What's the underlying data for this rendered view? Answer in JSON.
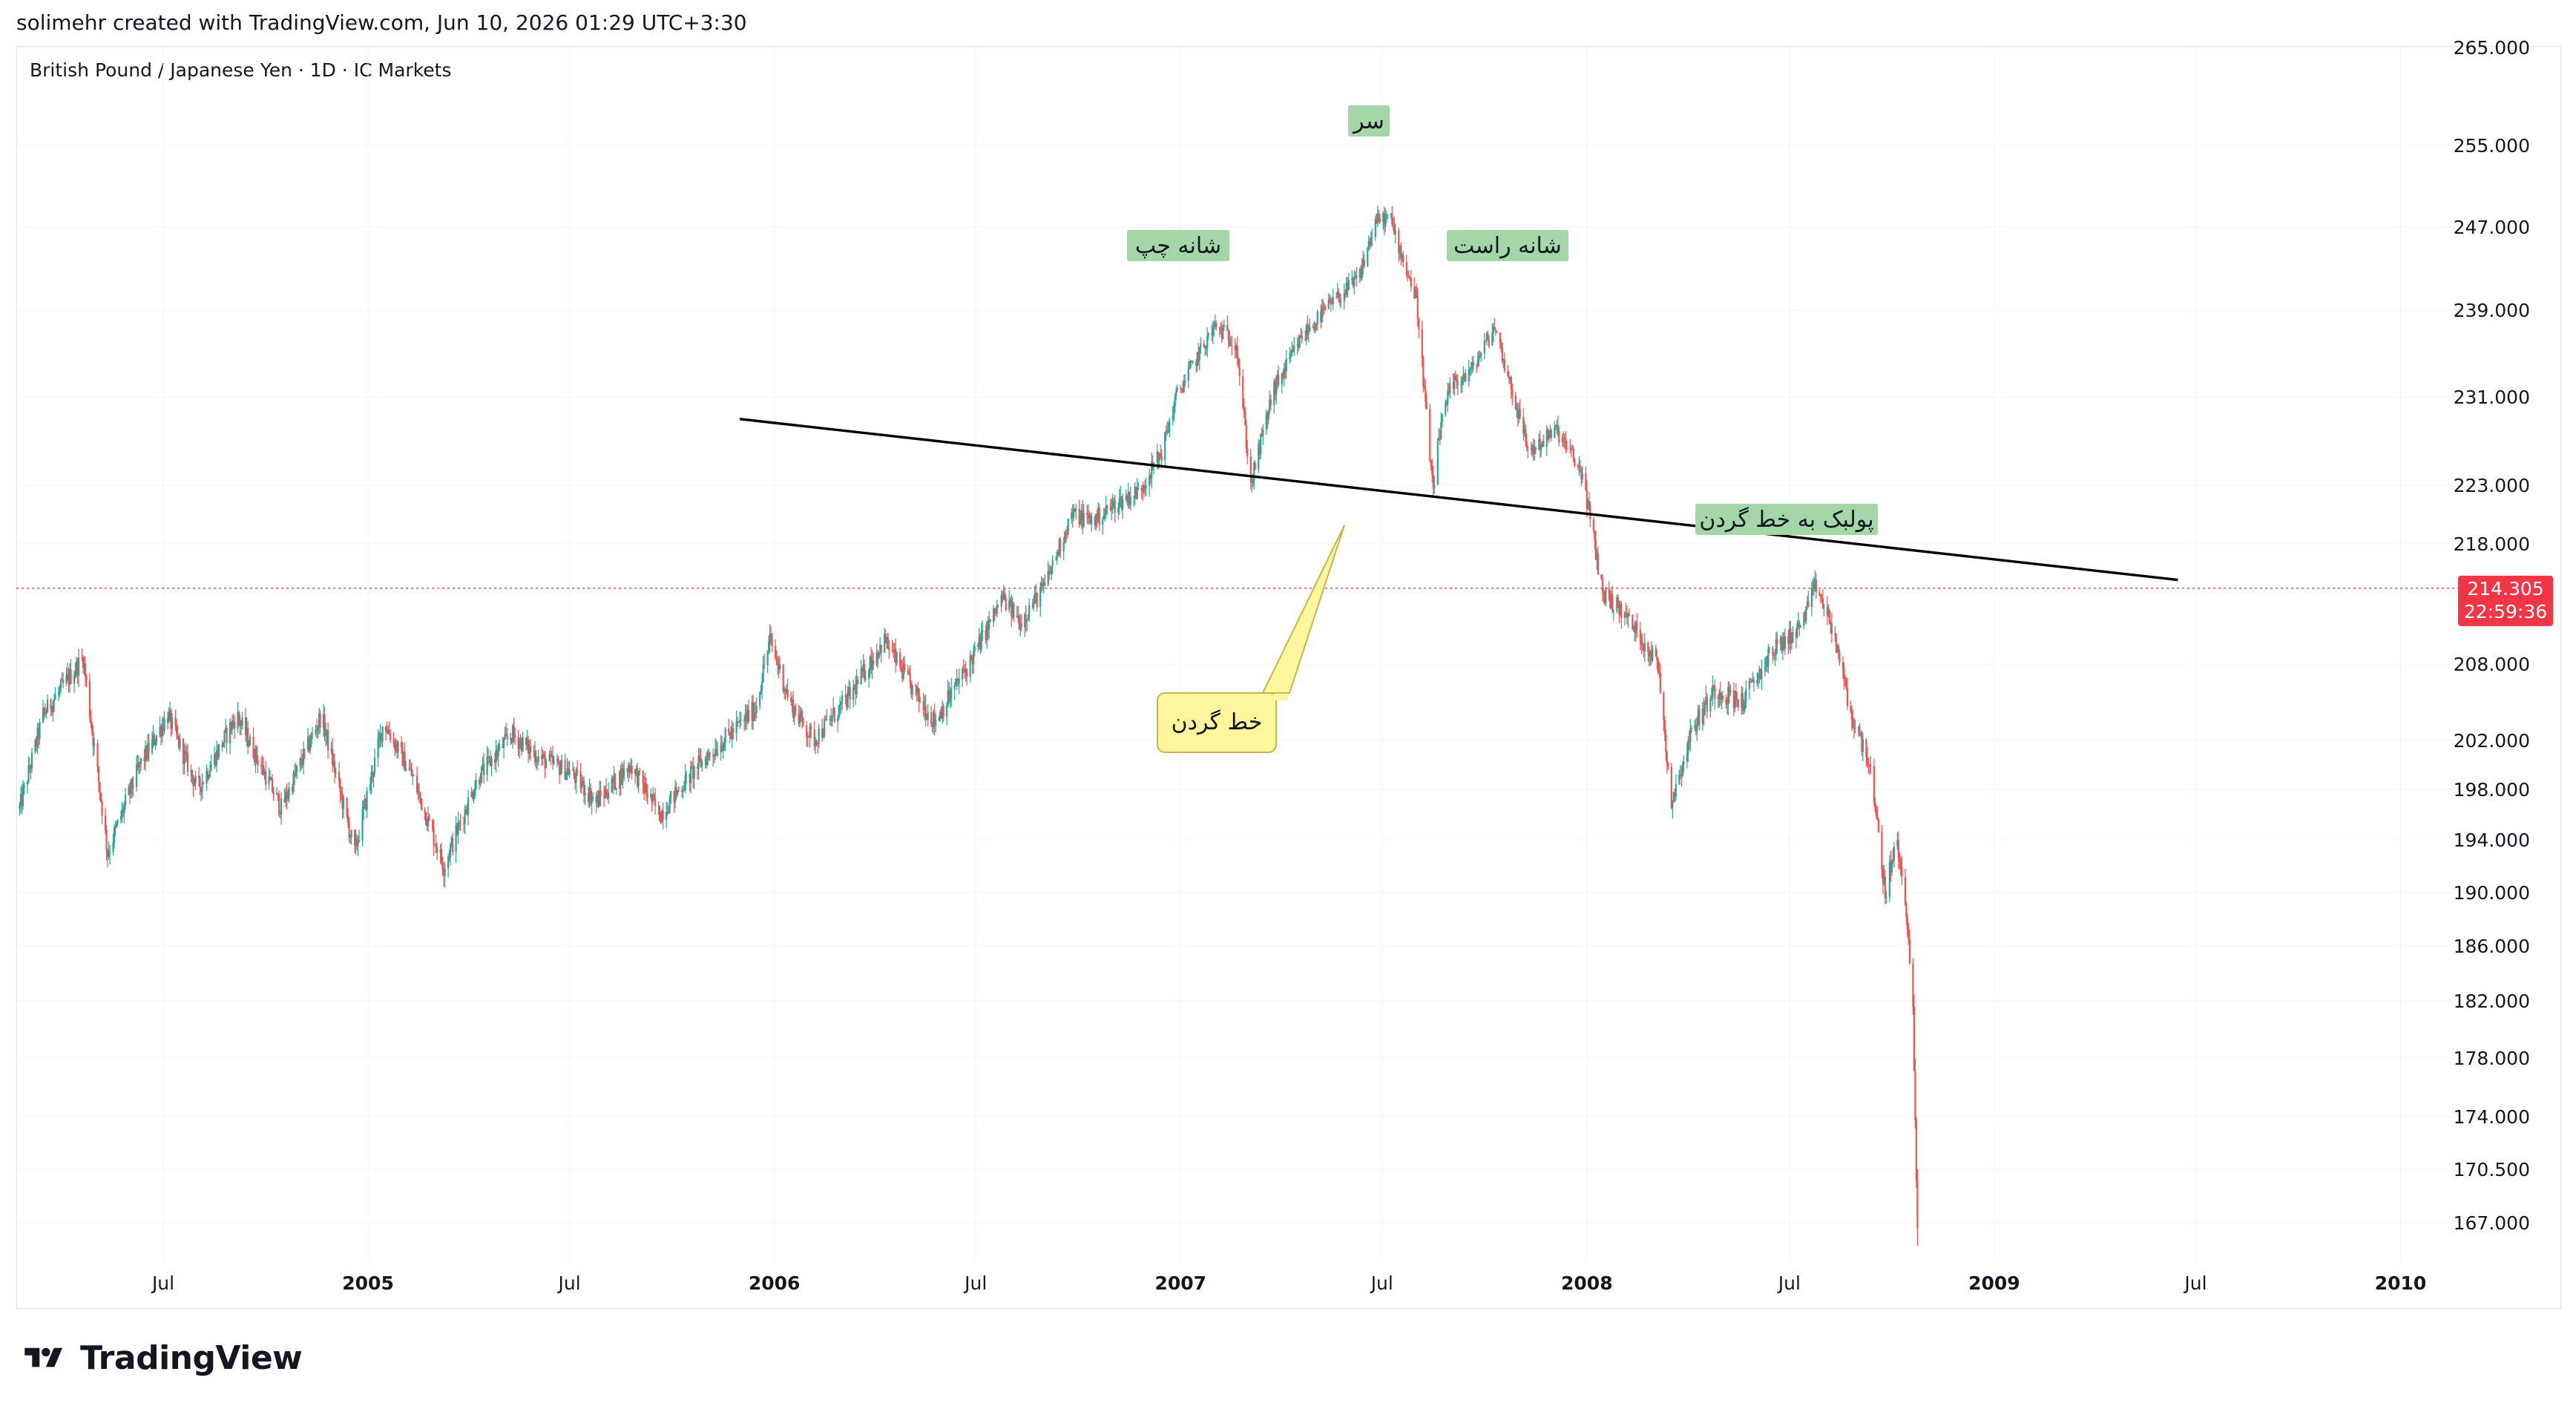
{
  "header": {
    "attribution": "solimehr created with TradingView.com, Jun 10, 2026 01:29 UTC+3:30"
  },
  "symbol": {
    "title": "British Pound / Japanese Yen · 1D · IC Markets"
  },
  "brand": {
    "name": "TradingView"
  },
  "colors": {
    "up": "#26a69a",
    "down": "#ef5350",
    "neckline": "#000000",
    "label_bg": "#a5d6a7",
    "callout_bg": "#fff59d",
    "price_tag": "#f23645",
    "grid": "#f0f3fa"
  },
  "chart_data": {
    "type": "candlestick",
    "title": "British Pound / Japanese Yen · 1D · IC Markets",
    "x_range": [
      "2004-02-20",
      "2010-02-25"
    ],
    "y_range": [
      165.5,
      265.0
    ],
    "y_ticks": [
      "265.000",
      "255.000",
      "247.000",
      "239.000",
      "231.000",
      "223.000",
      "218.000",
      "208.000",
      "202.000",
      "198.000",
      "194.000",
      "190.000",
      "186.000",
      "182.000",
      "178.000",
      "174.000",
      "170.500",
      "167.000"
    ],
    "x_ticks": [
      {
        "label": "Jul",
        "date": "2004-07-01",
        "bold": false
      },
      {
        "label": "2005",
        "date": "2005-01-01",
        "bold": true
      },
      {
        "label": "Jul",
        "date": "2005-07-01",
        "bold": false
      },
      {
        "label": "2006",
        "date": "2006-01-01",
        "bold": true
      },
      {
        "label": "Jul",
        "date": "2006-07-01",
        "bold": false
      },
      {
        "label": "2007",
        "date": "2007-01-01",
        "bold": true
      },
      {
        "label": "Jul",
        "date": "2007-07-01",
        "bold": false
      },
      {
        "label": "2008",
        "date": "2008-01-01",
        "bold": true
      },
      {
        "label": "Jul",
        "date": "2008-07-01",
        "bold": false
      },
      {
        "label": "2009",
        "date": "2009-01-01",
        "bold": true
      },
      {
        "label": "Jul",
        "date": "2009-07-01",
        "bold": false
      },
      {
        "label": "2010",
        "date": "2010-01-01",
        "bold": true
      }
    ],
    "price_path": [
      [
        "2004-02-23",
        196.5
      ],
      [
        "2004-03-15",
        204.0
      ],
      [
        "2004-04-20",
        208.5
      ],
      [
        "2004-05-12",
        193.0
      ],
      [
        "2004-06-10",
        200.0
      ],
      [
        "2004-07-05",
        204.0
      ],
      [
        "2004-08-01",
        198.0
      ],
      [
        "2004-09-05",
        204.0
      ],
      [
        "2004-10-15",
        196.5
      ],
      [
        "2004-11-20",
        204.0
      ],
      [
        "2004-12-20",
        193.0
      ],
      [
        "2005-01-15",
        203.5
      ],
      [
        "2005-02-10",
        199.0
      ],
      [
        "2005-03-10",
        192.0
      ],
      [
        "2005-04-10",
        199.0
      ],
      [
        "2005-05-10",
        202.5
      ],
      [
        "2005-06-05",
        200.5
      ],
      [
        "2005-07-01",
        199.5
      ],
      [
        "2005-07-25",
        197.0
      ],
      [
        "2005-08-25",
        200.0
      ],
      [
        "2005-09-20",
        196.0
      ],
      [
        "2005-10-25",
        200.0
      ],
      [
        "2005-12-15",
        204.5
      ],
      [
        "2005-12-28",
        210.0
      ],
      [
        "2006-01-15",
        205.0
      ],
      [
        "2006-02-05",
        202.0
      ],
      [
        "2006-03-10",
        205.5
      ],
      [
        "2006-04-10",
        210.0
      ],
      [
        "2006-05-05",
        206.0
      ],
      [
        "2006-05-25",
        203.5
      ],
      [
        "2006-06-25",
        208.0
      ],
      [
        "2006-07-25",
        213.5
      ],
      [
        "2006-08-10",
        211.5
      ],
      [
        "2006-09-01",
        214.5
      ],
      [
        "2006-09-25",
        220.5
      ],
      [
        "2006-10-15",
        220.0
      ],
      [
        "2006-11-05",
        221.5
      ],
      [
        "2006-11-25",
        222.5
      ],
      [
        "2006-12-15",
        226.0
      ],
      [
        "2006-12-28",
        231.0
      ],
      [
        "2007-01-15",
        234.5
      ],
      [
        "2007-02-01",
        237.5
      ],
      [
        "2007-02-20",
        236.0
      ],
      [
        "2007-03-05",
        223.0
      ],
      [
        "2007-03-25",
        231.5
      ],
      [
        "2007-04-20",
        236.5
      ],
      [
        "2007-05-15",
        239.5
      ],
      [
        "2007-06-10",
        242.0
      ],
      [
        "2007-06-25",
        247.5
      ],
      [
        "2007-07-08",
        248.0
      ],
      [
        "2007-07-15",
        245.5
      ],
      [
        "2007-08-01",
        240.0
      ],
      [
        "2007-08-16",
        222.0
      ],
      [
        "2007-08-20",
        227.0
      ],
      [
        "2007-09-01",
        232.0
      ],
      [
        "2007-09-20",
        233.5
      ],
      [
        "2007-10-10",
        237.5
      ],
      [
        "2007-10-22",
        233.0
      ],
      [
        "2007-11-10",
        226.0
      ],
      [
        "2007-12-05",
        228.0
      ],
      [
        "2007-12-28",
        224.0
      ],
      [
        "2008-01-15",
        214.0
      ],
      [
        "2008-02-05",
        212.0
      ],
      [
        "2008-03-05",
        208.0
      ],
      [
        "2008-03-17",
        197.0
      ],
      [
        "2008-04-05",
        203.0
      ],
      [
        "2008-04-25",
        206.0
      ],
      [
        "2008-05-20",
        205.0
      ],
      [
        "2008-06-15",
        209.0
      ],
      [
        "2008-07-10",
        211.0
      ],
      [
        "2008-07-25",
        214.5
      ],
      [
        "2008-08-10",
        210.5
      ],
      [
        "2008-08-25",
        204.0
      ],
      [
        "2008-09-10",
        200.5
      ],
      [
        "2008-09-25",
        190.0
      ],
      [
        "2008-10-05",
        194.0
      ],
      [
        "2008-10-15",
        188.0
      ],
      [
        "2008-10-20",
        181.0
      ],
      [
        "2008-10-24",
        166.0
      ]
    ],
    "annotations": {
      "head": "سر",
      "left_shoulder": "شانه چپ",
      "right_shoulder": "شانه راست",
      "pullback": "پولبک به خط گردن",
      "neckline": "خط گردن"
    },
    "neckline": {
      "start": [
        "2005-12-01",
        229.0
      ],
      "end": [
        "2009-06-15",
        215.0
      ]
    },
    "last_price": {
      "value": "214.305",
      "countdown": "22:59:36"
    }
  }
}
